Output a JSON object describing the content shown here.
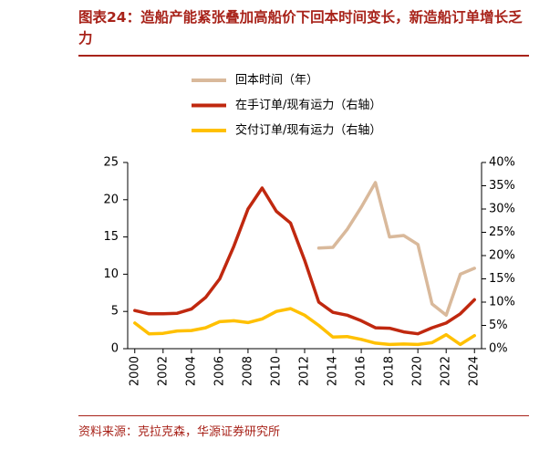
{
  "chart_data": {
    "type": "line",
    "title": "图表24：造船产能紧张叠加高船价下回本时间变长，新造船订单增长乏力",
    "source": "资料来源：克拉克森，华源证券研究所",
    "x": [
      2000,
      2001,
      2002,
      2003,
      2004,
      2005,
      2006,
      2007,
      2008,
      2009,
      2010,
      2011,
      2012,
      2013,
      2014,
      2015,
      2016,
      2017,
      2018,
      2019,
      2020,
      2021,
      2022,
      2023,
      2024
    ],
    "xlim": [
      1999.5,
      2024.5
    ],
    "xticks": [
      2000,
      2002,
      2004,
      2006,
      2008,
      2010,
      2012,
      2014,
      2016,
      2018,
      2020,
      2022,
      2024
    ],
    "ylim": [
      0,
      25
    ],
    "yticks": [
      0,
      5,
      10,
      15,
      20,
      25
    ],
    "y2lim": [
      0,
      40
    ],
    "y2ticks": [
      {
        "value": 0,
        "label": "0%"
      },
      {
        "value": 5,
        "label": "5%"
      },
      {
        "value": 10,
        "label": "10%"
      },
      {
        "value": 15,
        "label": "15%"
      },
      {
        "value": 20,
        "label": "20%"
      },
      {
        "value": 25,
        "label": "25%"
      },
      {
        "value": 30,
        "label": "30%"
      },
      {
        "value": 35,
        "label": "35%"
      },
      {
        "value": 40,
        "label": "40%"
      }
    ],
    "series": [
      {
        "name": "回本时间（年）",
        "color": "#d9b99b",
        "values": [
          null,
          null,
          null,
          null,
          null,
          null,
          null,
          null,
          null,
          null,
          null,
          null,
          null,
          13.5,
          13.6,
          16,
          19,
          22.3,
          15,
          15.2,
          14,
          6,
          4.5,
          10,
          10.8
        ]
      },
      {
        "name": "在手订单/现有运力（右轴）",
        "color": "#c0280f",
        "axis": "y2",
        "values": [
          8.2,
          7.5,
          7.5,
          7.6,
          8.5,
          11,
          15,
          22,
          30,
          34.5,
          29.5,
          27,
          19,
          10,
          7.8,
          7.2,
          6,
          4.5,
          4.4,
          3.6,
          3.2,
          4.5,
          5.5,
          7.5,
          10.5
        ]
      },
      {
        "name": "交付订单/现有运力（右轴）",
        "color": "#ffc000",
        "axis": "y2",
        "values": [
          5.5,
          3.2,
          3.3,
          3.8,
          3.9,
          4.5,
          5.8,
          6,
          5.6,
          6.4,
          8,
          8.6,
          7.2,
          5,
          2.5,
          2.6,
          2,
          1.2,
          0.9,
          1,
          0.9,
          1.3,
          3,
          0.9,
          2.8
        ]
      }
    ]
  }
}
